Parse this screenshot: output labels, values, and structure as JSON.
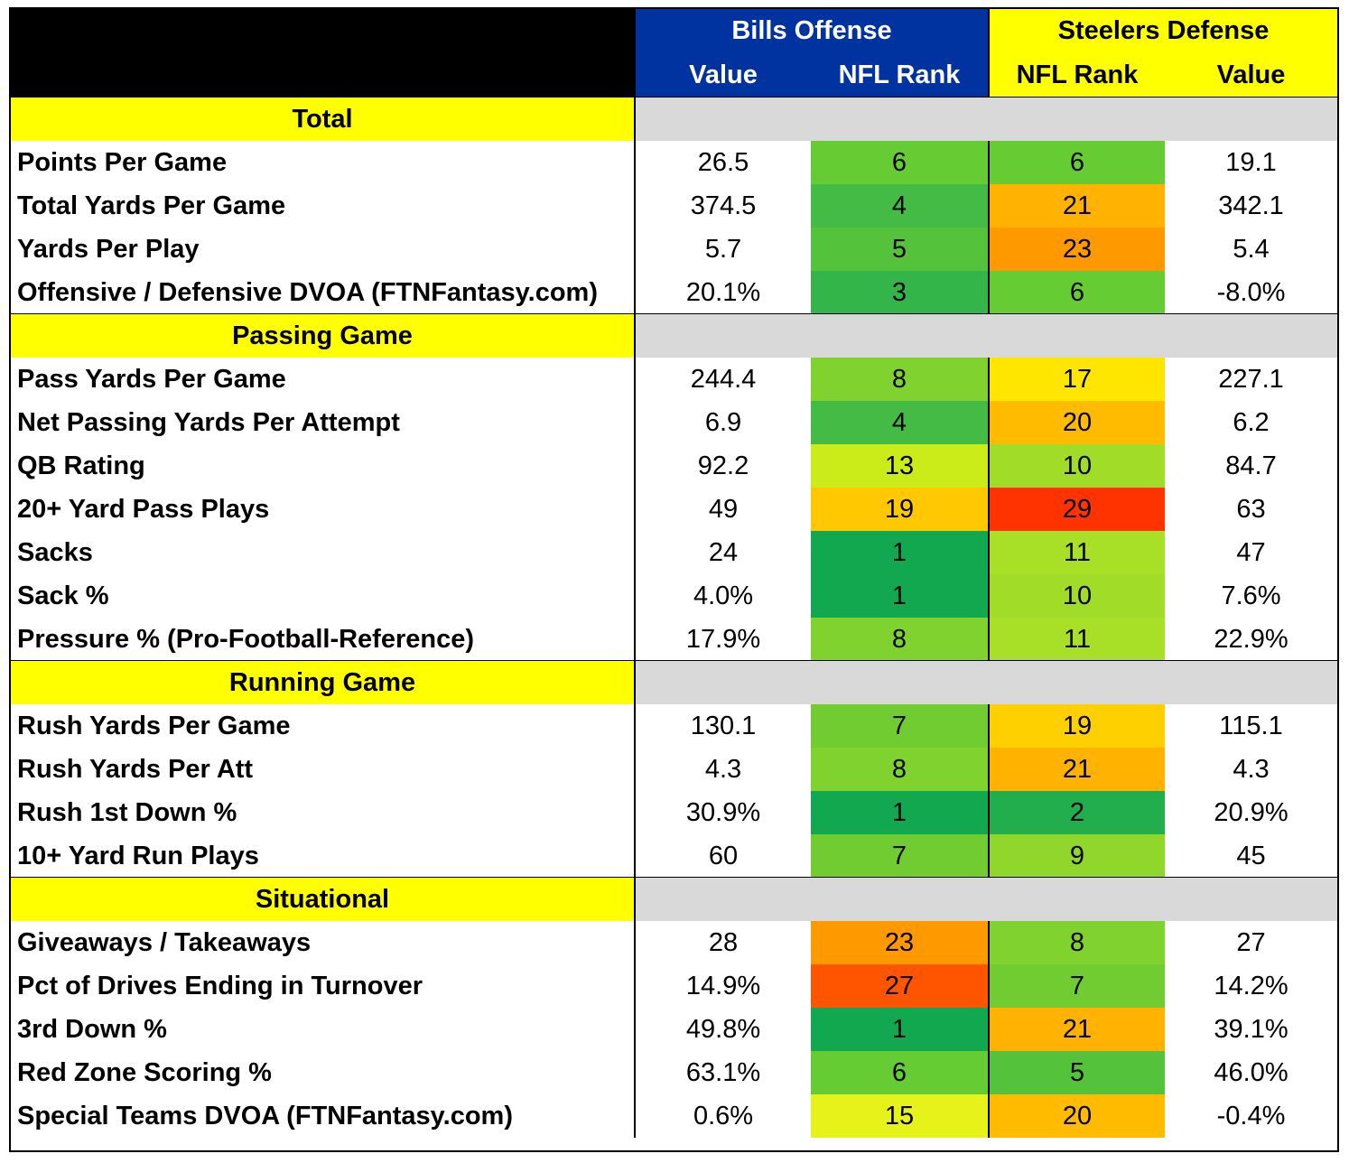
{
  "header": {
    "bills_title": "Bills Offense",
    "steelers_title": "Steelers Defense",
    "col_value_1": "Value",
    "col_rank_1": "NFL Rank",
    "col_rank_2": "NFL Rank",
    "col_value_2": "Value"
  },
  "colors": {
    "bills_header": "#0033a0",
    "steelers_header": "#ffff00",
    "section_label": "#ffff00",
    "section_gray": "#d9d9d9"
  },
  "sections": [
    {
      "title": "Total",
      "rows": [
        {
          "stat": "Points Per Game",
          "bills_value": "26.5",
          "bills_rank": "6",
          "bills_rank_color": "#66cc33",
          "steelers_rank": "6",
          "steelers_rank_color": "#66cc33",
          "steelers_value": "19.1"
        },
        {
          "stat": "Total Yards Per Game",
          "bills_value": "374.5",
          "bills_rank": "4",
          "bills_rank_color": "#44bb44",
          "steelers_rank": "21",
          "steelers_rank_color": "#ffb300",
          "steelers_value": "342.1"
        },
        {
          "stat": "Yards Per Play",
          "bills_value": "5.7",
          "bills_rank": "5",
          "bills_rank_color": "#55c23c",
          "steelers_rank": "23",
          "steelers_rank_color": "#ff9900",
          "steelers_value": "5.4"
        },
        {
          "stat": "Offensive / Defensive DVOA (FTNFantasy.com)",
          "bills_value": "20.1%",
          "bills_rank": "3",
          "bills_rank_color": "#33b54a",
          "steelers_rank": "6",
          "steelers_rank_color": "#66cc33",
          "steelers_value": "-8.0%"
        }
      ]
    },
    {
      "title": "Passing Game",
      "rows": [
        {
          "stat": "Pass Yards Per Game",
          "bills_value": "244.4",
          "bills_rank": "8",
          "bills_rank_color": "#80d22e",
          "steelers_rank": "17",
          "steelers_rank_color": "#ffe600",
          "steelers_value": "227.1"
        },
        {
          "stat": "Net Passing Yards Per Attempt",
          "bills_value": "6.9",
          "bills_rank": "4",
          "bills_rank_color": "#44bb44",
          "steelers_rank": "20",
          "steelers_rank_color": "#ffbb00",
          "steelers_value": "6.2"
        },
        {
          "stat": "QB Rating",
          "bills_value": "92.2",
          "bills_rank": "13",
          "bills_rank_color": "#ccec1a",
          "steelers_rank": "10",
          "steelers_rank_color": "#a0dc28",
          "steelers_value": "84.7"
        },
        {
          "stat": "20+ Yard Pass Plays",
          "bills_value": "49",
          "bills_rank": "19",
          "bills_rank_color": "#ffc800",
          "steelers_rank": "29",
          "steelers_rank_color": "#ff3300",
          "steelers_value": "63"
        },
        {
          "stat": "Sacks",
          "bills_value": "24",
          "bills_rank": "1",
          "bills_rank_color": "#11a84f",
          "steelers_rank": "11",
          "steelers_rank_color": "#a8e028",
          "steelers_value": "47"
        },
        {
          "stat": "Sack %",
          "bills_value": "4.0%",
          "bills_rank": "1",
          "bills_rank_color": "#11a84f",
          "steelers_rank": "10",
          "steelers_rank_color": "#a0dc28",
          "steelers_value": "7.6%"
        },
        {
          "stat": "Pressure % (Pro-Football-Reference)",
          "bills_value": "17.9%",
          "bills_rank": "8",
          "bills_rank_color": "#80d22e",
          "steelers_rank": "11",
          "steelers_rank_color": "#a8e028",
          "steelers_value": "22.9%"
        }
      ]
    },
    {
      "title": "Running Game",
      "rows": [
        {
          "stat": "Rush Yards Per Game",
          "bills_value": "130.1",
          "bills_rank": "7",
          "bills_rank_color": "#70cc30",
          "steelers_rank": "19",
          "steelers_rank_color": "#ffd000",
          "steelers_value": "115.1"
        },
        {
          "stat": "Rush Yards Per Att",
          "bills_value": "4.3",
          "bills_rank": "8",
          "bills_rank_color": "#80d22e",
          "steelers_rank": "21",
          "steelers_rank_color": "#ffb300",
          "steelers_value": "4.3"
        },
        {
          "stat": "Rush 1st Down %",
          "bills_value": "30.9%",
          "bills_rank": "1",
          "bills_rank_color": "#11a84f",
          "steelers_rank": "2",
          "steelers_rank_color": "#22ae4c",
          "steelers_value": "20.9%"
        },
        {
          "stat": "10+ Yard Run Plays",
          "bills_value": "60",
          "bills_rank": "7",
          "bills_rank_color": "#70cc30",
          "steelers_rank": "9",
          "steelers_rank_color": "#90d62b",
          "steelers_value": "45"
        }
      ]
    },
    {
      "title": "Situational",
      "rows": [
        {
          "stat": "Giveaways / Takeaways",
          "bills_value": "28",
          "bills_rank": "23",
          "bills_rank_color": "#ff9900",
          "steelers_rank": "8",
          "steelers_rank_color": "#80d22e",
          "steelers_value": "27"
        },
        {
          "stat": "Pct of Drives Ending in Turnover",
          "bills_value": "14.9%",
          "bills_rank": "27",
          "bills_rank_color": "#ff5500",
          "steelers_rank": "7",
          "steelers_rank_color": "#70cc30",
          "steelers_value": "14.2%"
        },
        {
          "stat": "3rd Down %",
          "bills_value": "49.8%",
          "bills_rank": "1",
          "bills_rank_color": "#11a84f",
          "steelers_rank": "21",
          "steelers_rank_color": "#ffb300",
          "steelers_value": "39.1%"
        },
        {
          "stat": "Red Zone Scoring %",
          "bills_value": "63.1%",
          "bills_rank": "6",
          "bills_rank_color": "#66cc33",
          "steelers_rank": "5",
          "steelers_rank_color": "#55c23c",
          "steelers_value": "46.0%"
        },
        {
          "stat": "Special Teams DVOA  (FTNFantasy.com)",
          "bills_value": "0.6%",
          "bills_rank": "15",
          "bills_rank_color": "#e6f21a",
          "steelers_rank": "20",
          "steelers_rank_color": "#ffbb00",
          "steelers_value": "-0.4%"
        }
      ]
    }
  ]
}
